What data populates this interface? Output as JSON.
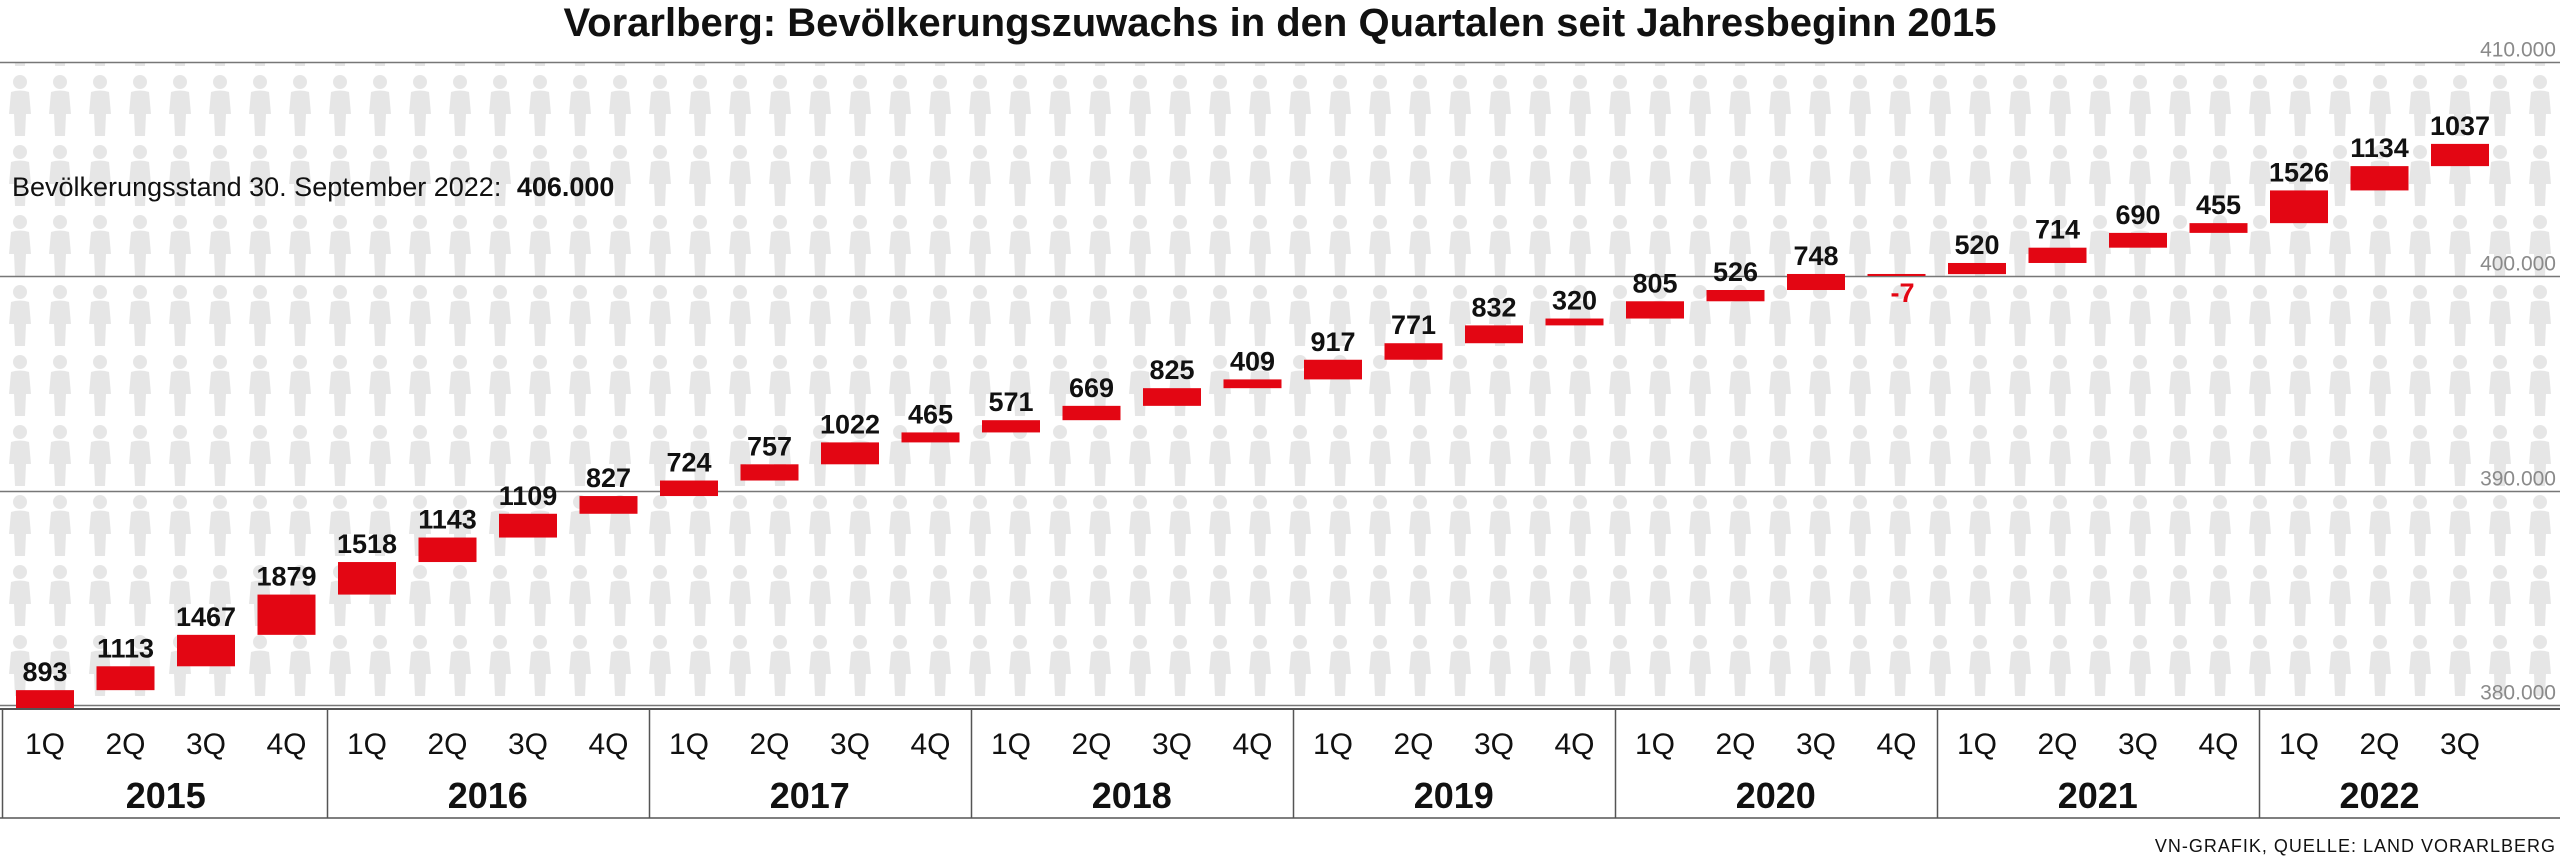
{
  "chart_data": {
    "type": "waterfall",
    "title": "Vorarlberg: Bevölkerungszuwachs in den Quartalen seit Jahresbeginn 2015",
    "annotation": {
      "label": "Bevölkerungsstand 30. September 2022:",
      "value": "406.000"
    },
    "ylim": [
      380000,
      410000
    ],
    "yticks": [
      {
        "value": 380000,
        "label": "380.000"
      },
      {
        "value": 390000,
        "label": "390.000"
      },
      {
        "value": 400000,
        "label": "400.000"
      },
      {
        "value": 410000,
        "label": "410.000"
      }
    ],
    "start_value": 379800,
    "colors": {
      "bar": "#e30613",
      "negative_label": "#e30613",
      "gridline": "#777777",
      "background_figures": "#e6e6e6"
    },
    "years": [
      "2015",
      "2016",
      "2017",
      "2018",
      "2019",
      "2020",
      "2021",
      "2022"
    ],
    "quarter_labels": [
      "1Q",
      "2Q",
      "3Q",
      "4Q"
    ],
    "series": [
      {
        "year": "2015",
        "quarter": "1Q",
        "value": 893
      },
      {
        "year": "2015",
        "quarter": "2Q",
        "value": 1113
      },
      {
        "year": "2015",
        "quarter": "3Q",
        "value": 1467
      },
      {
        "year": "2015",
        "quarter": "4Q",
        "value": 1879
      },
      {
        "year": "2016",
        "quarter": "1Q",
        "value": 1518
      },
      {
        "year": "2016",
        "quarter": "2Q",
        "value": 1143
      },
      {
        "year": "2016",
        "quarter": "3Q",
        "value": 1109
      },
      {
        "year": "2016",
        "quarter": "4Q",
        "value": 827
      },
      {
        "year": "2017",
        "quarter": "1Q",
        "value": 724
      },
      {
        "year": "2017",
        "quarter": "2Q",
        "value": 757
      },
      {
        "year": "2017",
        "quarter": "3Q",
        "value": 1022
      },
      {
        "year": "2017",
        "quarter": "4Q",
        "value": 465
      },
      {
        "year": "2018",
        "quarter": "1Q",
        "value": 571
      },
      {
        "year": "2018",
        "quarter": "2Q",
        "value": 669
      },
      {
        "year": "2018",
        "quarter": "3Q",
        "value": 825
      },
      {
        "year": "2018",
        "quarter": "4Q",
        "value": 409
      },
      {
        "year": "2019",
        "quarter": "1Q",
        "value": 917
      },
      {
        "year": "2019",
        "quarter": "2Q",
        "value": 771
      },
      {
        "year": "2019",
        "quarter": "3Q",
        "value": 832
      },
      {
        "year": "2019",
        "quarter": "4Q",
        "value": 320
      },
      {
        "year": "2020",
        "quarter": "1Q",
        "value": 805
      },
      {
        "year": "2020",
        "quarter": "2Q",
        "value": 526
      },
      {
        "year": "2020",
        "quarter": "3Q",
        "value": 748
      },
      {
        "year": "2020",
        "quarter": "4Q",
        "value": -7
      },
      {
        "year": "2021",
        "quarter": "1Q",
        "value": 520
      },
      {
        "year": "2021",
        "quarter": "2Q",
        "value": 714
      },
      {
        "year": "2021",
        "quarter": "3Q",
        "value": 690
      },
      {
        "year": "2021",
        "quarter": "4Q",
        "value": 455
      },
      {
        "year": "2022",
        "quarter": "1Q",
        "value": 1526
      },
      {
        "year": "2022",
        "quarter": "2Q",
        "value": 1134
      },
      {
        "year": "2022",
        "quarter": "3Q",
        "value": 1037
      }
    ],
    "source": "VN-GRAFIK, QUELLE: LAND VORARLBERG"
  }
}
